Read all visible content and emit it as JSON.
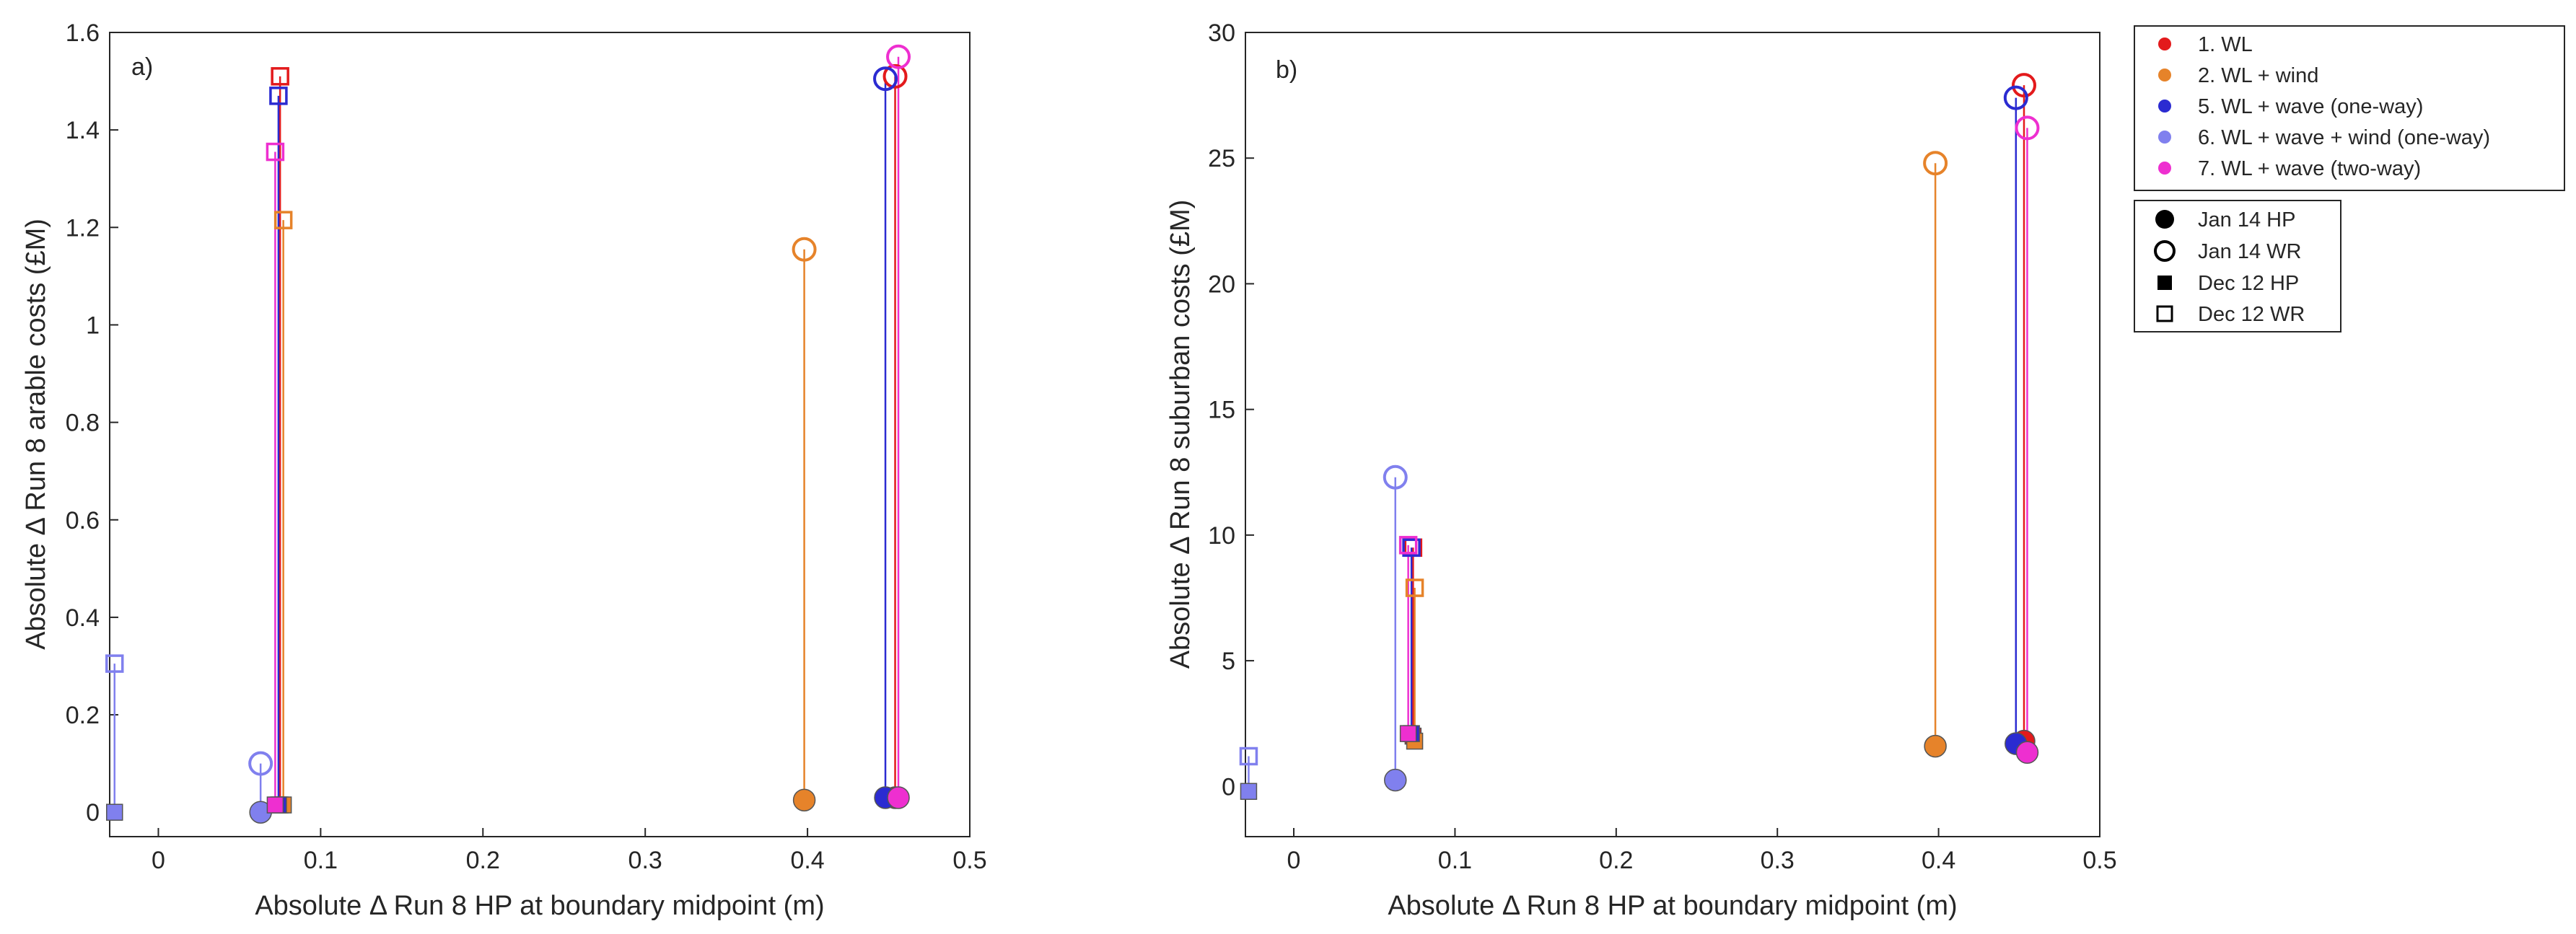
{
  "chart_data": [
    {
      "type": "scatter",
      "panel_label": "a)",
      "xlabel": "Absolute Δ Run 8 HP at boundary midpoint  (m)",
      "ylabel": "Absolute Δ Run 8 arable costs (£M)",
      "xlim": [
        -0.03,
        0.5
      ],
      "ylim": [
        -0.05,
        1.6
      ],
      "xticks": [
        0,
        0.1,
        0.2,
        0.3,
        0.4,
        0.5
      ],
      "xtick_labels": [
        "0",
        "0.1",
        "0.2",
        "0.3",
        "0.4",
        "0.5"
      ],
      "yticks": [
        0,
        0.2,
        0.4,
        0.6,
        0.8,
        1,
        1.2,
        1.4,
        1.6
      ],
      "ytick_labels": [
        "0",
        "0.2",
        "0.4",
        "0.6",
        "0.8",
        "1",
        "1.2",
        "1.4",
        "1.6"
      ],
      "series": [
        {
          "name": "1. WL",
          "Jan 14": {
            "x": 0.454,
            "hp": 0.03,
            "wr": 1.51
          },
          "Dec 12": {
            "x": 0.075,
            "hp": 0.015,
            "wr": 1.51
          }
        },
        {
          "name": "2. WL + wind",
          "Jan 14": {
            "x": 0.398,
            "hp": 0.025,
            "wr": 1.155
          },
          "Dec 12": {
            "x": 0.077,
            "hp": 0.015,
            "wr": 1.215
          }
        },
        {
          "name": "5. WL + wave (one-way)",
          "Jan 14": {
            "x": 0.448,
            "hp": 0.03,
            "wr": 1.505
          },
          "Dec 12": {
            "x": 0.074,
            "hp": 0.015,
            "wr": 1.47
          }
        },
        {
          "name": "6. WL + wave + wind (one-way)",
          "Jan 14": {
            "x": 0.063,
            "hp": 0.0,
            "wr": 0.1
          },
          "Dec 12": {
            "x": -0.027,
            "hp": 0.0,
            "wr": 0.305
          }
        },
        {
          "name": "7. WL + wave (two-way)",
          "Jan 14": {
            "x": 0.456,
            "hp": 0.03,
            "wr": 1.55
          },
          "Dec 12": {
            "x": 0.072,
            "hp": 0.015,
            "wr": 1.355
          }
        }
      ]
    },
    {
      "type": "scatter",
      "panel_label": "b)",
      "xlabel": "Absolute Δ Run 8 HP at boundary midpoint  (m)",
      "ylabel": "Absolute Δ Run 8 suburban costs (£M)",
      "xlim": [
        -0.03,
        0.5
      ],
      "ylim": [
        -2,
        30
      ],
      "xticks": [
        0,
        0.1,
        0.2,
        0.3,
        0.4,
        0.5
      ],
      "xtick_labels": [
        "0",
        "0.1",
        "0.2",
        "0.3",
        "0.4",
        "0.5"
      ],
      "yticks": [
        0,
        5,
        10,
        15,
        20,
        25,
        30
      ],
      "ytick_labels": [
        "0",
        "5",
        "10",
        "15",
        "20",
        "25",
        "30"
      ],
      "series": [
        {
          "name": "1. WL",
          "Jan 14": {
            "x": 0.453,
            "hp": 1.8,
            "wr": 27.9
          },
          "Dec 12": {
            "x": 0.074,
            "hp": 2.0,
            "wr": 9.5
          }
        },
        {
          "name": "2. WL + wind",
          "Jan 14": {
            "x": 0.398,
            "hp": 1.6,
            "wr": 24.8
          },
          "Dec 12": {
            "x": 0.075,
            "hp": 1.8,
            "wr": 7.9
          }
        },
        {
          "name": "5. WL + wave (one-way)",
          "Jan 14": {
            "x": 0.448,
            "hp": 1.7,
            "wr": 27.4
          },
          "Dec 12": {
            "x": 0.073,
            "hp": 2.1,
            "wr": 9.5
          }
        },
        {
          "name": "6. WL + wave + wind (one-way)",
          "Jan 14": {
            "x": 0.063,
            "hp": 0.25,
            "wr": 12.3
          },
          "Dec 12": {
            "x": -0.028,
            "hp": -0.2,
            "wr": 1.2
          }
        },
        {
          "name": "7. WL + wave (two-way)",
          "Jan 14": {
            "x": 0.455,
            "hp": 1.35,
            "wr": 26.2
          },
          "Dec 12": {
            "x": 0.071,
            "hp": 2.1,
            "wr": 9.6
          }
        }
      ]
    }
  ],
  "legend": {
    "series": [
      {
        "label": "1. WL",
        "color": "#e31a1c"
      },
      {
        "label": "2. WL + wind",
        "color": "#e6832a"
      },
      {
        "label": "5. WL + wave (one-way)",
        "color": "#2b2bd1"
      },
      {
        "label": "6. WL + wave + wind (one-way)",
        "color": "#8080ee"
      },
      {
        "label": "7. WL + wave (two-way)",
        "color": "#ee2fd0"
      }
    ],
    "markers": [
      {
        "label": "Jan 14 HP",
        "shape": "filled-circle"
      },
      {
        "label": "Jan 14 WR",
        "shape": "open-circle"
      },
      {
        "label": "Dec 12 HP",
        "shape": "filled-square"
      },
      {
        "label": "Dec 12 WR",
        "shape": "open-square"
      }
    ]
  }
}
